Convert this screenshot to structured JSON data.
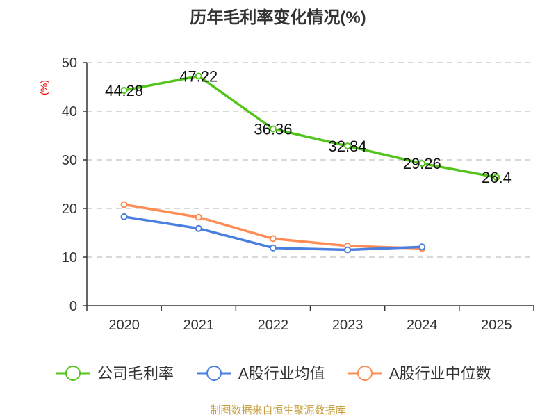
{
  "chart_data": {
    "type": "line",
    "title": "历年毛利率变化情况(%)",
    "ylabel": "(%)",
    "xlabel": "",
    "categories": [
      "2020",
      "2021",
      "2022",
      "2023",
      "2024",
      "2025"
    ],
    "ylim": [
      0,
      50
    ],
    "yticks": [
      0,
      10,
      20,
      30,
      40,
      50
    ],
    "grid": true,
    "legend_position": "bottom",
    "series": [
      {
        "name": "公司毛利率",
        "color": "#52c41a",
        "values": [
          44.28,
          47.22,
          36.36,
          32.84,
          29.26,
          26.4
        ],
        "labels": [
          "44.28",
          "47.22",
          "36.36",
          "32.84",
          "29.26",
          "26.4"
        ]
      },
      {
        "name": "A股行业均值",
        "color": "#4a7fe0",
        "values": [
          18.3,
          15.9,
          11.9,
          11.5,
          12.1,
          null
        ]
      },
      {
        "name": "A股行业中位数",
        "color": "#ff8c55",
        "values": [
          20.8,
          18.2,
          13.8,
          12.3,
          11.8,
          null
        ]
      }
    ],
    "source": "制图数据来自恒生聚源数据库"
  }
}
